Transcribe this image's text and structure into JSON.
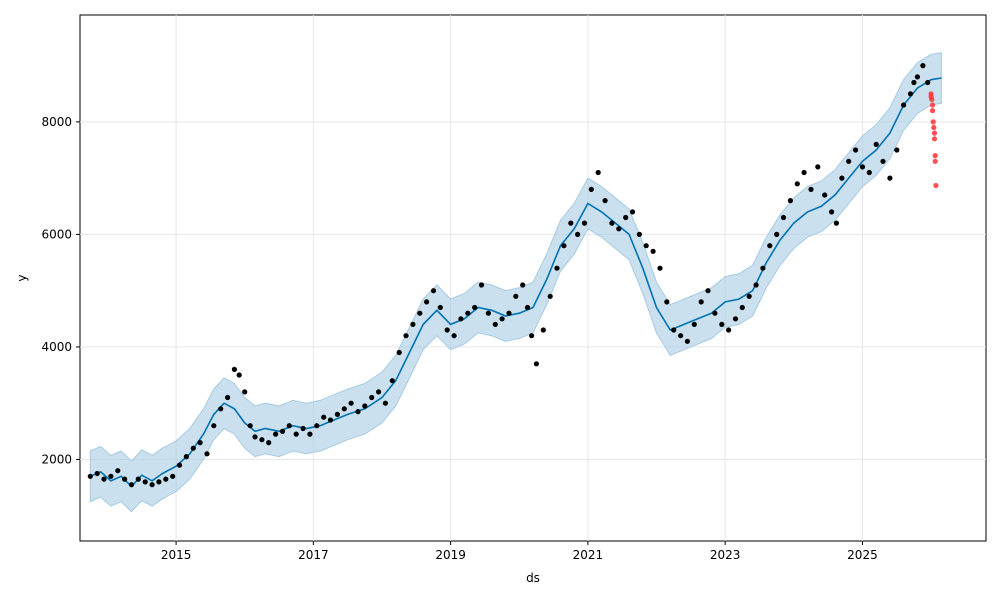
{
  "chart_data": {
    "type": "line",
    "xlabel": "ds",
    "ylabel": "y",
    "xlim": [
      2013.6,
      2026.8
    ],
    "ylim": [
      550,
      9900
    ],
    "grid": true,
    "x_ticks": [
      2015,
      2017,
      2019,
      2021,
      2023,
      2025
    ],
    "x_tick_labels": [
      "2015",
      "2017",
      "2019",
      "2021",
      "2023",
      "2025"
    ],
    "y_ticks": [
      2000,
      4000,
      6000,
      8000
    ],
    "y_tick_labels": [
      "2000",
      "4000",
      "6000",
      "8000"
    ],
    "colors": {
      "forecast_line": "#0072b2",
      "uncertainty_band": "#a6cbe3",
      "observed_points": "#000000",
      "test_points": "#ff3333",
      "grid": "#e6e6e6"
    },
    "series": [
      {
        "role": "forecast",
        "x": [
          2013.75,
          2013.9,
          2014.05,
          2014.2,
          2014.35,
          2014.5,
          2014.65,
          2014.8,
          2015.0,
          2015.2,
          2015.4,
          2015.55,
          2015.7,
          2015.85,
          2016.0,
          2016.15,
          2016.3,
          2016.5,
          2016.7,
          2016.9,
          2017.1,
          2017.3,
          2017.5,
          2017.75,
          2018.0,
          2018.2,
          2018.4,
          2018.6,
          2018.8,
          2019.0,
          2019.2,
          2019.4,
          2019.6,
          2019.8,
          2020.0,
          2020.2,
          2020.4,
          2020.6,
          2020.8,
          2021.0,
          2021.2,
          2021.4,
          2021.6,
          2021.8,
          2022.0,
          2022.2,
          2022.4,
          2022.6,
          2022.8,
          2023.0,
          2023.2,
          2023.4,
          2023.6,
          2023.8,
          2024.0,
          2024.2,
          2024.4,
          2024.6,
          2024.8,
          2025.0,
          2025.2,
          2025.4,
          2025.6,
          2025.8,
          2026.0,
          2026.15
        ],
        "y": [
          1700,
          1780,
          1620,
          1700,
          1520,
          1720,
          1620,
          1750,
          1880,
          2100,
          2450,
          2800,
          3000,
          2900,
          2650,
          2500,
          2550,
          2500,
          2600,
          2550,
          2600,
          2700,
          2800,
          2900,
          3100,
          3400,
          3900,
          4400,
          4650,
          4400,
          4500,
          4700,
          4650,
          4550,
          4600,
          4700,
          5200,
          5800,
          6100,
          6550,
          6400,
          6200,
          6000,
          5400,
          4700,
          4300,
          4400,
          4500,
          4600,
          4800,
          4850,
          5000,
          5500,
          5900,
          6200,
          6400,
          6500,
          6700,
          7000,
          7300,
          7500,
          7800,
          8300,
          8600,
          8750,
          8780
        ]
      },
      {
        "role": "uncertainty",
        "x": [
          2013.75,
          2013.9,
          2014.05,
          2014.2,
          2014.35,
          2014.5,
          2014.65,
          2014.8,
          2015.0,
          2015.2,
          2015.4,
          2015.55,
          2015.7,
          2015.85,
          2016.0,
          2016.15,
          2016.3,
          2016.5,
          2016.7,
          2016.9,
          2017.1,
          2017.3,
          2017.5,
          2017.75,
          2018.0,
          2018.2,
          2018.4,
          2018.6,
          2018.8,
          2019.0,
          2019.2,
          2019.4,
          2019.6,
          2019.8,
          2020.0,
          2020.2,
          2020.4,
          2020.6,
          2020.8,
          2021.0,
          2021.2,
          2021.4,
          2021.6,
          2021.8,
          2022.0,
          2022.2,
          2022.4,
          2022.6,
          2022.8,
          2023.0,
          2023.2,
          2023.4,
          2023.6,
          2023.8,
          2024.0,
          2024.2,
          2024.4,
          2024.6,
          2024.8,
          2025.0,
          2025.2,
          2025.4,
          2025.6,
          2025.8,
          2026.0,
          2026.15
        ],
        "lower": [
          1250,
          1330,
          1170,
          1250,
          1070,
          1270,
          1170,
          1300,
          1430,
          1650,
          2000,
          2350,
          2550,
          2450,
          2200,
          2050,
          2100,
          2050,
          2150,
          2100,
          2150,
          2250,
          2350,
          2450,
          2650,
          2950,
          3450,
          3950,
          4200,
          3950,
          4050,
          4250,
          4200,
          4100,
          4150,
          4250,
          4750,
          5350,
          5650,
          6100,
          5950,
          5750,
          5550,
          4950,
          4250,
          3850,
          3950,
          4050,
          4150,
          4350,
          4400,
          4550,
          5050,
          5450,
          5750,
          5950,
          6050,
          6250,
          6550,
          6850,
          7050,
          7350,
          7850,
          8150,
          8300,
          8330
        ],
        "upper": [
          2150,
          2230,
          2070,
          2150,
          1970,
          2170,
          2070,
          2200,
          2330,
          2550,
          2900,
          3250,
          3450,
          3350,
          3100,
          2950,
          3000,
          2950,
          3050,
          3000,
          3050,
          3150,
          3250,
          3350,
          3550,
          3850,
          4350,
          4850,
          5100,
          4850,
          4950,
          5150,
          5100,
          5000,
          5050,
          5150,
          5650,
          6250,
          6550,
          7000,
          6850,
          6650,
          6450,
          5850,
          5150,
          4750,
          4850,
          4950,
          5050,
          5250,
          5300,
          5450,
          5950,
          6350,
          6650,
          6850,
          6950,
          7150,
          7450,
          7750,
          7950,
          8250,
          8750,
          9050,
          9200,
          9230
        ]
      },
      {
        "role": "observed",
        "x": [
          2013.75,
          2013.85,
          2013.95,
          2014.05,
          2014.15,
          2014.25,
          2014.35,
          2014.45,
          2014.55,
          2014.65,
          2014.75,
          2014.85,
          2014.95,
          2015.05,
          2015.15,
          2015.25,
          2015.35,
          2015.45,
          2015.55,
          2015.65,
          2015.75,
          2015.85,
          2015.92,
          2016.0,
          2016.08,
          2016.15,
          2016.25,
          2016.35,
          2016.45,
          2016.55,
          2016.65,
          2016.75,
          2016.85,
          2016.95,
          2017.05,
          2017.15,
          2017.25,
          2017.35,
          2017.45,
          2017.55,
          2017.65,
          2017.75,
          2017.85,
          2017.95,
          2018.05,
          2018.15,
          2018.25,
          2018.35,
          2018.45,
          2018.55,
          2018.65,
          2018.75,
          2018.85,
          2018.95,
          2019.05,
          2019.15,
          2019.25,
          2019.35,
          2019.45,
          2019.55,
          2019.65,
          2019.75,
          2019.85,
          2019.95,
          2020.05,
          2020.12,
          2020.18,
          2020.25,
          2020.35,
          2020.45,
          2020.55,
          2020.65,
          2020.75,
          2020.85,
          2020.95,
          2021.05,
          2021.15,
          2021.25,
          2021.35,
          2021.45,
          2021.55,
          2021.65,
          2021.75,
          2021.85,
          2021.95,
          2022.05,
          2022.15,
          2022.25,
          2022.35,
          2022.45,
          2022.55,
          2022.65,
          2022.75,
          2022.85,
          2022.95,
          2023.05,
          2023.15,
          2023.25,
          2023.35,
          2023.45,
          2023.55,
          2023.65,
          2023.75,
          2023.85,
          2023.95,
          2024.05,
          2024.15,
          2024.25,
          2024.35,
          2024.45,
          2024.55,
          2024.62,
          2024.7,
          2024.8,
          2024.9,
          2025.0,
          2025.1,
          2025.2,
          2025.3,
          2025.4,
          2025.5,
          2025.6,
          2025.7,
          2025.75,
          2025.8,
          2025.88,
          2025.95
        ],
        "y": [
          1700,
          1750,
          1650,
          1700,
          1800,
          1650,
          1550,
          1650,
          1600,
          1550,
          1600,
          1650,
          1700,
          1900,
          2050,
          2200,
          2300,
          2100,
          2600,
          2900,
          3100,
          3600,
          3500,
          3200,
          2600,
          2400,
          2350,
          2300,
          2450,
          2500,
          2600,
          2450,
          2550,
          2450,
          2600,
          2750,
          2700,
          2800,
          2900,
          3000,
          2850,
          2950,
          3100,
          3200,
          3000,
          3400,
          3900,
          4200,
          4400,
          4600,
          4800,
          5000,
          4700,
          4300,
          4200,
          4500,
          4600,
          4700,
          5100,
          4600,
          4400,
          4500,
          4600,
          4900,
          5100,
          4700,
          4200,
          3700,
          4300,
          4900,
          5400,
          5800,
          6200,
          6000,
          6200,
          6800,
          7100,
          6600,
          6200,
          6100,
          6300,
          6400,
          6000,
          5800,
          5700,
          5400,
          4800,
          4300,
          4200,
          4100,
          4400,
          4800,
          5000,
          4600,
          4400,
          4300,
          4500,
          4700,
          4900,
          5100,
          5400,
          5800,
          6000,
          6300,
          6600,
          6900,
          7100,
          6800,
          7200,
          6700,
          6400,
          6200,
          7000,
          7300,
          7500,
          7200,
          7100,
          7600,
          7300,
          7000,
          7500,
          8300,
          8500,
          8700,
          8800,
          9000,
          8700
        ]
      },
      {
        "role": "test",
        "x": [
          2026.0,
          2026.0,
          2026.01,
          2026.02,
          2026.02,
          2026.03,
          2026.04,
          2026.05,
          2026.05,
          2026.06,
          2026.06,
          2026.07
        ],
        "y": [
          8500,
          8450,
          8400,
          8300,
          8200,
          8000,
          7900,
          7800,
          7700,
          7400,
          7300,
          6870
        ]
      }
    ]
  }
}
